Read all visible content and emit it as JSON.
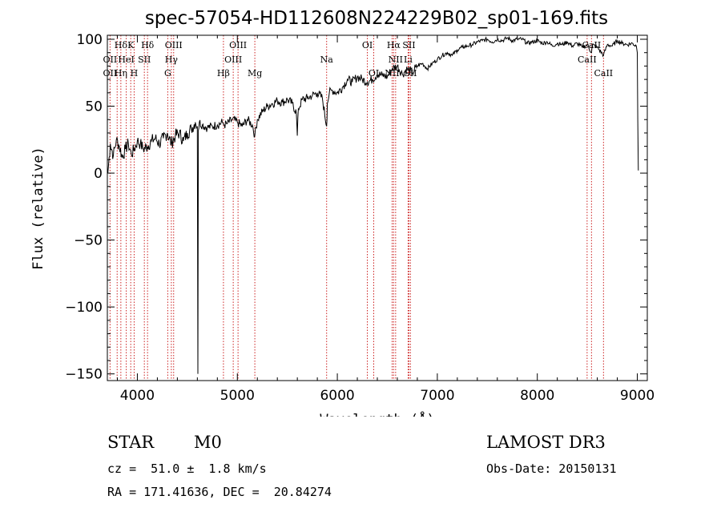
{
  "chart_data": {
    "type": "line",
    "title": "spec-57054-HD112608N224229B02_sp01-169.fits",
    "xlabel": "Wavelength (Å)",
    "ylabel": "Flux (relative)",
    "xlim": [
      3700,
      9100
    ],
    "ylim": [
      -155,
      103
    ],
    "x_ticks": [
      4000,
      5000,
      6000,
      7000,
      8000,
      9000
    ],
    "y_ticks": [
      100,
      50,
      0,
      -50,
      -100,
      -150
    ],
    "y_tick_labels": [
      "100",
      "50",
      "0",
      "−50",
      "−100",
      "−150"
    ],
    "x_minor_step": 200,
    "y_minor_step": 10,
    "series": [
      {
        "name": "spectrum",
        "x": [
          3705,
          3730,
          3760,
          3790,
          3820,
          3850,
          3880,
          3910,
          3940,
          3970,
          4000,
          4030,
          4060,
          4100,
          4140,
          4180,
          4220,
          4260,
          4300,
          4340,
          4380,
          4420,
          4460,
          4500,
          4540,
          4580,
          4600,
          4605,
          4610,
          4620,
          4650,
          4700,
          4750,
          4800,
          4850,
          4870,
          4900,
          4950,
          5000,
          5050,
          5100,
          5150,
          5175,
          5200,
          5250,
          5300,
          5350,
          5400,
          5450,
          5500,
          5550,
          5590,
          5600,
          5610,
          5650,
          5700,
          5750,
          5800,
          5850,
          5893,
          5900,
          5920,
          5950,
          6000,
          6050,
          6100,
          6150,
          6200,
          6250,
          6300,
          6350,
          6400,
          6450,
          6500,
          6550,
          6600,
          6650,
          6700,
          6750,
          6800,
          6850,
          6900,
          6950,
          7000,
          7050,
          7100,
          7150,
          7200,
          7250,
          7300,
          7350,
          7400,
          7450,
          7500,
          7550,
          7600,
          7650,
          7700,
          7750,
          7800,
          7850,
          7900,
          7950,
          8000,
          8050,
          8100,
          8150,
          8200,
          8250,
          8300,
          8350,
          8400,
          8450,
          8500,
          8542,
          8550,
          8600,
          8662,
          8700,
          8750,
          8800,
          8850,
          8900,
          8950,
          8990,
          9000,
          9005,
          9010
        ],
        "y": [
          0,
          22,
          13,
          25,
          20,
          12,
          18,
          22,
          14,
          18,
          24,
          22,
          18,
          20,
          24,
          26,
          22,
          26,
          30,
          22,
          28,
          30,
          24,
          30,
          33,
          38,
          35,
          -150,
          32,
          38,
          36,
          34,
          35,
          36,
          38,
          36,
          37,
          40,
          38,
          35,
          40,
          36,
          28,
          40,
          46,
          50,
          52,
          54,
          53,
          55,
          52,
          45,
          28,
          48,
          55,
          56,
          58,
          60,
          56,
          35,
          52,
          60,
          62,
          60,
          64,
          70,
          68,
          72,
          70,
          68,
          70,
          74,
          73,
          72,
          78,
          80,
          74,
          78,
          75,
          80,
          82,
          78,
          82,
          85,
          88,
          90,
          88,
          92,
          94,
          95,
          96,
          98,
          99,
          100,
          98,
          100,
          99,
          101,
          99,
          100,
          100,
          97,
          98,
          99,
          97,
          98,
          95,
          97,
          96,
          98,
          95,
          97,
          94,
          96,
          90,
          96,
          94,
          88,
          96,
          95,
          99,
          97,
          96,
          97,
          95,
          90,
          40,
          2
        ]
      }
    ],
    "lines_top": [
      {
        "label": "Hδ",
        "x": 3835
      },
      {
        "label": "K",
        "x": 3934
      },
      {
        "label": "Hδ",
        "x": 4102
      },
      {
        "label": "OIII",
        "x": 4363
      },
      {
        "label": "OIII",
        "x": 5007
      },
      {
        "label": "OI",
        "x": 6300
      },
      {
        "label": "Hα",
        "x": 6563
      },
      {
        "label": "SII",
        "x": 6716
      },
      {
        "label": "CaII",
        "x": 8542
      }
    ],
    "lines_mid": [
      {
        "label": "OII",
        "x": 3727
      },
      {
        "label": "HeI",
        "x": 3889
      },
      {
        "label": "SII",
        "x": 4070
      },
      {
        "label": "Hγ",
        "x": 4340
      },
      {
        "label": "OIII",
        "x": 4959
      },
      {
        "label": "Na",
        "x": 5893
      },
      {
        "label": "NII",
        "x": 6583
      },
      {
        "label": "Li",
        "x": 6708
      },
      {
        "label": "CaII",
        "x": 8498
      }
    ],
    "lines_low": [
      {
        "label": "OII",
        "x": 3727
      },
      {
        "label": "Hη",
        "x": 3835
      },
      {
        "label": "H",
        "x": 3968
      },
      {
        "label": "G",
        "x": 4304
      },
      {
        "label": "Hβ",
        "x": 4861
      },
      {
        "label": "Mg",
        "x": 5175
      },
      {
        "label": "OI",
        "x": 6364
      },
      {
        "label": "NII",
        "x": 6548
      },
      {
        "label": "SII",
        "x": 6731
      },
      {
        "label": "CaII",
        "x": 8662
      }
    ],
    "line_marker_wavelengths": [
      3727,
      3798,
      3835,
      3889,
      3934,
      3968,
      4070,
      4102,
      4304,
      4340,
      4363,
      4861,
      4959,
      5007,
      5175,
      5893,
      6300,
      6364,
      6548,
      6563,
      6583,
      6708,
      6716,
      6731,
      8498,
      8542,
      8662
    ],
    "line_marker_color": "#cc2222",
    "curve_color": "#000000"
  },
  "info": {
    "object_class": "STAR",
    "subclass": "M0",
    "survey": "LAMOST DR3",
    "redshift": "cz =  51.0 ±  1.8 km/s",
    "obs_date": "Obs-Date: 20150131",
    "coords": "RA = 171.41636, DEC =  20.84274"
  }
}
